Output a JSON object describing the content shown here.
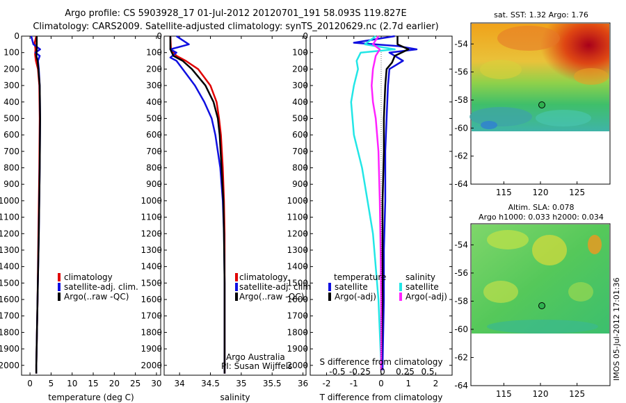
{
  "header": {
    "line1": "Argo profile: CS 5903928_17 01-Jul-2012 20120701_191 58.093S 119.827E",
    "line2": "Climatology: CARS2009. Satellite-adjusted climatology: synTS_20120629.nc (2.7d earlier)"
  },
  "side_stamp": "IMOS 05-Jul-2012 17:01:36",
  "colors": {
    "climatology": "#e00000",
    "satellite_adj": "#1010e0",
    "argo": "#000000",
    "salinity_sat": "#22e6e6",
    "salinity_argo": "#ff22ff"
  },
  "depth_ticks": [
    "0",
    "100",
    "200",
    "300",
    "400",
    "500",
    "600",
    "700",
    "800",
    "900",
    "1000",
    "1100",
    "1200",
    "1300",
    "1400",
    "1500",
    "1600",
    "1700",
    "1800",
    "1900",
    "2000"
  ],
  "chart_data": [
    {
      "type": "line",
      "panel": "temperature",
      "xlabel": "temperature (deg C)",
      "xticks": [
        "0",
        "5",
        "10",
        "15",
        "20",
        "25",
        "30"
      ],
      "xlim": [
        -2,
        31
      ],
      "ylim": [
        2060,
        0
      ],
      "legend": [
        "climatology",
        "satellite-adj. clim.",
        "Argo(..raw -QC)"
      ],
      "series": [
        {
          "name": "climatology",
          "depth": [
            0,
            40,
            80,
            110,
            150,
            200,
            300,
            500,
            800,
            1200,
            1600,
            2000,
            2050
          ],
          "values": [
            1.5,
            1.1,
            1.3,
            1.2,
            1.4,
            1.9,
            2.2,
            2.3,
            2.2,
            2.0,
            1.8,
            1.5,
            1.5
          ]
        },
        {
          "name": "satellite-adj. clim.",
          "depth": [
            0,
            50,
            80,
            100,
            120,
            150,
            200,
            300,
            500,
            800,
            1200,
            1600,
            2000,
            2050
          ],
          "values": [
            0.3,
            0.8,
            2.4,
            1.3,
            2.3,
            1.9,
            2.1,
            2.3,
            2.4,
            2.3,
            2.1,
            1.8,
            1.5,
            1.5
          ]
        },
        {
          "name": "Argo(..raw -QC)",
          "depth": [
            0,
            80,
            120,
            150,
            200,
            300,
            500,
            800,
            1200,
            1600,
            2000,
            2050
          ],
          "values": [
            1.6,
            1.6,
            1.5,
            1.8,
            2.0,
            2.3,
            2.4,
            2.3,
            2.1,
            1.8,
            1.5,
            1.5
          ]
        }
      ]
    },
    {
      "type": "line",
      "panel": "salinity",
      "xlabel": "salinity",
      "xticks": [
        "34",
        "34.5",
        "35",
        "35.5",
        "36"
      ],
      "xlim": [
        33.75,
        36.05
      ],
      "ylim": [
        2060,
        0
      ],
      "legend": [
        "climatology",
        "satellite-adj. clim.",
        "Argo(..raw -QC)"
      ],
      "annotation": [
        "Argo Australia",
        "PI: Susan Wijffels"
      ],
      "series": [
        {
          "name": "climatology",
          "depth": [
            0,
            80,
            120,
            150,
            200,
            300,
            400,
            500,
            600,
            800,
            1000,
            1200,
            1500,
            1800,
            2050
          ],
          "values": [
            33.85,
            33.86,
            33.95,
            34.1,
            34.3,
            34.5,
            34.6,
            34.64,
            34.67,
            34.7,
            34.72,
            34.73,
            34.73,
            34.73,
            34.73
          ]
        },
        {
          "name": "satellite-adj. clim.",
          "depth": [
            0,
            50,
            80,
            100,
            130,
            150,
            200,
            300,
            400,
            500,
            600,
            800,
            1000,
            1200,
            1500,
            1800,
            2050
          ],
          "values": [
            33.95,
            34.15,
            33.85,
            33.95,
            33.85,
            33.95,
            34.05,
            34.25,
            34.4,
            34.52,
            34.58,
            34.66,
            34.7,
            34.72,
            34.73,
            34.73,
            34.73
          ]
        },
        {
          "name": "Argo(..raw -QC)",
          "depth": [
            0,
            80,
            120,
            150,
            200,
            300,
            400,
            500,
            600,
            800,
            1000,
            1200,
            1500,
            1800,
            2050
          ],
          "values": [
            33.85,
            33.85,
            33.9,
            34.05,
            34.2,
            34.42,
            34.55,
            34.62,
            34.65,
            34.68,
            34.71,
            34.72,
            34.73,
            34.73,
            34.73
          ]
        }
      ]
    },
    {
      "type": "line",
      "panel": "difference",
      "xlabel": "T difference from climatology",
      "xlabel_top": "S difference from climatology",
      "xticks": [
        "-2",
        "-1",
        "0",
        "1",
        "2"
      ],
      "xticks_top": [
        "-0.5",
        "-0.25",
        "0",
        "0.25",
        "0.5"
      ],
      "xlim": [
        -2.6,
        2.6
      ],
      "ylim": [
        2060,
        0
      ],
      "legend_titles": [
        "temperature",
        "salinity"
      ],
      "legend": [
        "satellite",
        "Argo(-adj)",
        "satellite",
        "Argo(-adj)"
      ],
      "series": [
        {
          "name": "temperature satellite",
          "depth": [
            0,
            40,
            60,
            80,
            100,
            150,
            200,
            300,
            500,
            700,
            1000,
            1300,
            1600,
            2000,
            2030
          ],
          "values": [
            0.5,
            -1.0,
            0.6,
            1.3,
            0.3,
            0.8,
            0.3,
            0.25,
            0.2,
            0.15,
            0.15,
            0.1,
            0.1,
            0.05,
            0.05
          ]
        },
        {
          "name": "temperature Argo(-adj)",
          "depth": [
            0,
            50,
            80,
            120,
            160,
            200,
            300,
            500,
            700,
            1000,
            1300,
            1600,
            2000,
            2030
          ],
          "values": [
            0.6,
            0.6,
            1.0,
            0.5,
            0.4,
            0.2,
            0.15,
            0.1,
            0.1,
            0.05,
            0.05,
            0.05,
            0.0,
            0.0
          ]
        },
        {
          "name": "salinity satellite",
          "depth": [
            0,
            50,
            80,
            100,
            150,
            200,
            300,
            400,
            600,
            800,
            1000,
            1200,
            1600,
            2000,
            2030
          ],
          "values": [
            -0.2,
            -0.6,
            0.5,
            -0.75,
            -0.9,
            -0.85,
            -1.0,
            -1.1,
            -1.0,
            -0.7,
            -0.5,
            -0.3,
            -0.1,
            0.0,
            0.0
          ]
        },
        {
          "name": "salinity Argo(-adj)",
          "depth": [
            0,
            50,
            80,
            120,
            200,
            300,
            400,
            500,
            700,
            1000,
            1300,
            1600,
            2000,
            2030
          ],
          "values": [
            -0.1,
            -0.3,
            -0.05,
            -0.2,
            -0.3,
            -0.35,
            -0.3,
            -0.2,
            -0.1,
            -0.05,
            -0.02,
            0.0,
            0.0,
            0.0
          ]
        }
      ]
    }
  ],
  "maps": [
    {
      "title_lines": [
        "sat. SST: 1.32 Argo: 1.76"
      ],
      "lat_ticks": [
        "-54",
        "-56",
        "-58",
        "-60",
        "-62",
        "-64"
      ],
      "lon_ticks": [
        "115",
        "120",
        "125"
      ],
      "marker": {
        "lon": 119.8,
        "lat": -58.1
      }
    },
    {
      "title_lines": [
        "Altim. SLA: 0.078",
        "Argo h1000: 0.033 h2000: 0.034"
      ],
      "lat_ticks": [
        "-54",
        "-56",
        "-58",
        "-60",
        "-62",
        "-64"
      ],
      "lon_ticks": [
        "115",
        "120",
        "125"
      ],
      "marker": {
        "lon": 119.8,
        "lat": -58.1
      }
    }
  ]
}
